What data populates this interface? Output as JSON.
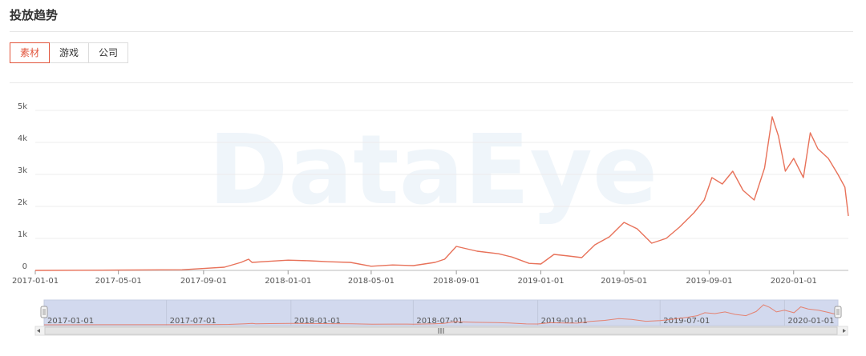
{
  "header": {
    "title": "投放趋势"
  },
  "tabs": [
    {
      "label": "素材",
      "active": true
    },
    {
      "label": "游戏",
      "active": false
    },
    {
      "label": "公司",
      "active": false
    }
  ],
  "watermark": "DataEye",
  "colors": {
    "accent": "#e2553c",
    "line": "#e8725a",
    "slider_fill": "#d2d9ee"
  },
  "chart_data": {
    "type": "line",
    "title": "",
    "xlabel": "",
    "ylabel": "",
    "ylim": [
      0,
      5000
    ],
    "yticks": [
      {
        "value": 0,
        "label": "0"
      },
      {
        "value": 1000,
        "label": "1k"
      },
      {
        "value": 2000,
        "label": "2k"
      },
      {
        "value": 3000,
        "label": "3k"
      },
      {
        "value": 4000,
        "label": "4k"
      },
      {
        "value": 5000,
        "label": "5k"
      }
    ],
    "xrange": [
      "2017-01-01",
      "2020-03-20"
    ],
    "xticks": [
      "2017-01-01",
      "2017-05-01",
      "2017-09-01",
      "2018-01-01",
      "2018-05-01",
      "2018-09-01",
      "2019-01-01",
      "2019-05-01",
      "2019-09-01",
      "2020-01-01"
    ],
    "grid": true,
    "series": [
      {
        "color": "#e8725a",
        "x": [
          "2017-01-01",
          "2017-05-01",
          "2017-08-01",
          "2017-09-01",
          "2017-10-01",
          "2017-10-25",
          "2017-11-05",
          "2017-11-10",
          "2017-12-01",
          "2018-01-01",
          "2018-02-01",
          "2018-03-01",
          "2018-04-01",
          "2018-05-01",
          "2018-06-01",
          "2018-07-01",
          "2018-08-01",
          "2018-08-15",
          "2018-09-01",
          "2018-10-01",
          "2018-11-01",
          "2018-11-20",
          "2018-12-15",
          "2019-01-01",
          "2019-01-20",
          "2019-02-10",
          "2019-03-01",
          "2019-03-20",
          "2019-04-10",
          "2019-05-01",
          "2019-05-20",
          "2019-06-10",
          "2019-07-01",
          "2019-07-20",
          "2019-08-10",
          "2019-08-25",
          "2019-09-05",
          "2019-09-20",
          "2019-10-05",
          "2019-10-20",
          "2019-11-05",
          "2019-11-20",
          "2019-12-01",
          "2019-12-10",
          "2019-12-20",
          "2020-01-01",
          "2020-01-15",
          "2020-01-25",
          "2020-02-05",
          "2020-02-20",
          "2020-03-05",
          "2020-03-15",
          "2020-03-20"
        ],
        "y": [
          0,
          10,
          20,
          60,
          100,
          250,
          350,
          250,
          280,
          320,
          300,
          270,
          250,
          130,
          170,
          150,
          250,
          350,
          750,
          600,
          520,
          420,
          220,
          200,
          500,
          450,
          400,
          800,
          1050,
          1500,
          1300,
          850,
          1000,
          1350,
          1800,
          2200,
          2900,
          2700,
          3100,
          2500,
          2200,
          3200,
          4800,
          4200,
          3100,
          3500,
          2900,
          4300,
          3800,
          3500,
          3000,
          2600,
          1700
        ]
      }
    ],
    "navigator": {
      "xticks": [
        "2017-01-01",
        "2017-07-01",
        "2018-01-01",
        "2018-07-01",
        "2019-01-01",
        "2019-07-01",
        "2020-01-01"
      ],
      "center_label": "III"
    }
  }
}
